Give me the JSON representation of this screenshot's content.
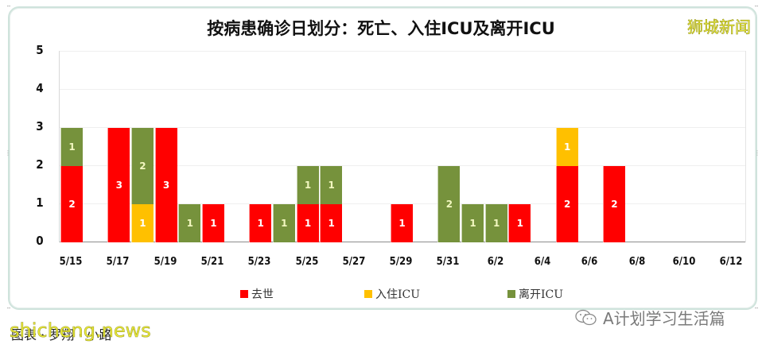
{
  "title": "按病患确诊日划分：死亡、入住ICU及离开ICU",
  "brand": "狮城新闻",
  "caption": "图表 · 罗翔 · 小路",
  "caption_watermark": "shicheng.news",
  "wechat_account": "A计划学习生活篇",
  "colors": {
    "death": "#ff0000",
    "icu_in": "#ffc000",
    "icu_out": "#76923c"
  },
  "legend": [
    {
      "key": "death",
      "label": "去世"
    },
    {
      "key": "icuin",
      "label": "入住ICU"
    },
    {
      "key": "icuout",
      "label": "离开ICU"
    }
  ],
  "y_ticks": [
    "0",
    "1",
    "2",
    "3",
    "4",
    "5"
  ],
  "x_ticks": [
    "5/15",
    "5/17",
    "5/19",
    "5/21",
    "5/23",
    "5/25",
    "5/27",
    "5/29",
    "5/31",
    "6/2",
    "6/4",
    "6/6",
    "6/8",
    "6/10",
    "6/12"
  ],
  "chart_data": {
    "type": "bar",
    "stacked": true,
    "title": "按病患确诊日划分：死亡、入住ICU及离开ICU",
    "xlabel": "",
    "ylabel": "",
    "ylim": [
      0,
      5
    ],
    "grid": true,
    "legend_position": "bottom",
    "categories": [
      "5/15",
      "5/16",
      "5/17",
      "5/18",
      "5/19",
      "5/20",
      "5/21",
      "5/22",
      "5/23",
      "5/24",
      "5/25",
      "5/26",
      "5/27",
      "5/28",
      "5/29",
      "5/30",
      "5/31",
      "6/1",
      "6/2",
      "6/3",
      "6/4",
      "6/5",
      "6/6",
      "6/7",
      "6/8",
      "6/9",
      "6/10",
      "6/11",
      "6/12"
    ],
    "series": [
      {
        "name": "去世",
        "color": "#ff0000",
        "values": [
          2,
          0,
          3,
          0,
          3,
          0,
          1,
          0,
          1,
          0,
          1,
          1,
          0,
          0,
          1,
          0,
          0,
          0,
          0,
          1,
          0,
          2,
          0,
          2,
          0,
          0,
          0,
          0,
          0
        ]
      },
      {
        "name": "入住ICU",
        "color": "#ffc000",
        "values": [
          0,
          0,
          0,
          1,
          0,
          0,
          0,
          0,
          0,
          0,
          0,
          0,
          0,
          0,
          0,
          0,
          0,
          0,
          0,
          0,
          0,
          1,
          0,
          0,
          0,
          0,
          0,
          0,
          0
        ]
      },
      {
        "name": "离开ICU",
        "color": "#76923c",
        "values": [
          1,
          0,
          0,
          2,
          0,
          1,
          0,
          0,
          0,
          1,
          1,
          1,
          0,
          0,
          0,
          0,
          2,
          1,
          1,
          0,
          0,
          0,
          0,
          0,
          0,
          0,
          0,
          0,
          0
        ]
      }
    ]
  }
}
